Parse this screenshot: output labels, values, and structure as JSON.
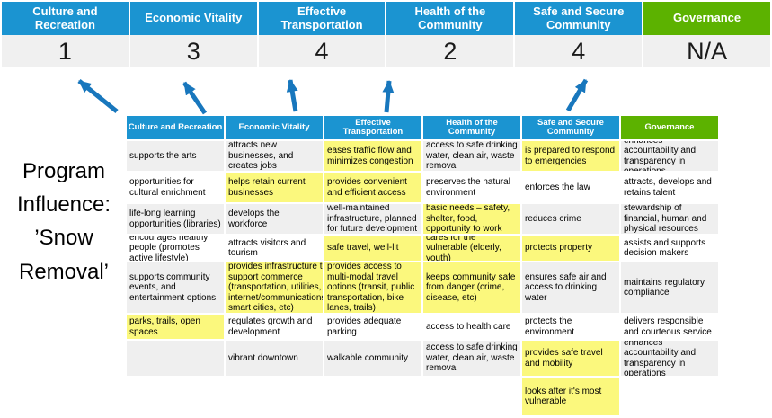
{
  "slide": {
    "program_label": "Program Influence: ’Snow Removal’"
  },
  "colors": {
    "priority_blue": "#1B94D1",
    "governance_green": "#5CB200",
    "highlight_yellow": "#FBF87D",
    "row_gray": "#EFEFEF",
    "score_row_bg": "#F0F0F0",
    "arrow_blue": "#1877BD"
  },
  "banner": {
    "columns": [
      {
        "label": "Culture and Recreation",
        "score": "1",
        "color": "#1B94D1"
      },
      {
        "label": "Economic Vitality",
        "score": "3",
        "color": "#1B94D1"
      },
      {
        "label": "Effective Transportation",
        "score": "4",
        "color": "#1B94D1"
      },
      {
        "label": "Health of the Community",
        "score": "2",
        "color": "#1B94D1"
      },
      {
        "label": "Safe and Secure Community",
        "score": "4",
        "color": "#1B94D1"
      },
      {
        "label": "Governance",
        "score": "N/A",
        "color": "#5CB200"
      }
    ]
  },
  "matrix": {
    "headers": [
      {
        "label": "Culture and Recreation",
        "color": "#1B94D1"
      },
      {
        "label": "Economic Vitality",
        "color": "#1B94D1"
      },
      {
        "label": "Effective Transportation",
        "color": "#1B94D1"
      },
      {
        "label": "Health of the Community",
        "color": "#1B94D1"
      },
      {
        "label": "Safe and Secure Community",
        "color": "#1B94D1"
      },
      {
        "label": "Governance",
        "color": "#5CB200"
      }
    ],
    "rows": [
      [
        {
          "text": "supports the arts",
          "highlight": false
        },
        {
          "text": "attracts new businesses, and creates jobs",
          "highlight": false
        },
        {
          "text": "eases traffic flow and minimizes congestion",
          "highlight": true
        },
        {
          "text": "access to safe drinking water, clean air, waste removal",
          "highlight": false
        },
        {
          "text": "is prepared to respond to emergencies",
          "highlight": true
        },
        {
          "text": "enhances accountability and transparency in operations",
          "highlight": false
        }
      ],
      [
        {
          "text": "opportunities for cultural enrichment",
          "highlight": false
        },
        {
          "text": "helps retain current businesses",
          "highlight": true
        },
        {
          "text": "provides convenient and efficient access",
          "highlight": true
        },
        {
          "text": "preserves the natural environment",
          "highlight": false
        },
        {
          "text": "enforces the law",
          "highlight": false
        },
        {
          "text": "attracts, develops and retains talent",
          "highlight": false
        }
      ],
      [
        {
          "text": "life-long learning opportunities (libraries)",
          "highlight": false
        },
        {
          "text": "develops the workforce",
          "highlight": false
        },
        {
          "text": "well-maintained infrastructure, planned for future development",
          "highlight": false
        },
        {
          "text": "basic needs – safety, shelter, food, opportunity to work",
          "highlight": true
        },
        {
          "text": "reduces crime",
          "highlight": false
        },
        {
          "text": "stewardship of financial, human and physical resources",
          "highlight": false
        }
      ],
      [
        {
          "text": "encourages healthy people (promotes active lifestyle)",
          "highlight": false
        },
        {
          "text": "attracts visitors and tourism",
          "highlight": false
        },
        {
          "text": "safe travel, well-lit",
          "highlight": true
        },
        {
          "text": "cares for the vulnerable (elderly, youth)",
          "highlight": true
        },
        {
          "text": "protects property",
          "highlight": true
        },
        {
          "text": "assists and supports decision makers",
          "highlight": false
        }
      ],
      [
        {
          "text": "supports community events, and entertainment options",
          "highlight": false
        },
        {
          "text": "provides infrastructure to support commerce (transportation, utilities, internet/communications, smart cities, etc)",
          "highlight": true
        },
        {
          "text": "provides access to multi-modal travel options (transit, public transportation, bike lanes, trails)",
          "highlight": true
        },
        {
          "text": "keeps community safe from danger (crime, disease, etc)",
          "highlight": true
        },
        {
          "text": "ensures safe air and access to drinking water",
          "highlight": false
        },
        {
          "text": "maintains regulatory compliance",
          "highlight": false
        }
      ],
      [
        {
          "text": "parks, trails, open spaces",
          "highlight": true
        },
        {
          "text": "regulates growth and development",
          "highlight": false
        },
        {
          "text": "provides adequate parking",
          "highlight": false
        },
        {
          "text": "access to health care",
          "highlight": false
        },
        {
          "text": "protects the environment",
          "highlight": false
        },
        {
          "text": "delivers responsible and courteous service",
          "highlight": false
        }
      ],
      [
        {
          "text": "",
          "highlight": false
        },
        {
          "text": "vibrant downtown",
          "highlight": false
        },
        {
          "text": "walkable community",
          "highlight": false
        },
        {
          "text": "access to safe drinking water, clean air, waste removal",
          "highlight": false
        },
        {
          "text": "provides safe travel and mobility",
          "highlight": true
        },
        {
          "text": "enhances accountability and transparency in operations",
          "highlight": false
        }
      ],
      [
        {
          "text": "",
          "highlight": false
        },
        {
          "text": "",
          "highlight": false
        },
        {
          "text": "",
          "highlight": false
        },
        {
          "text": "",
          "highlight": false
        },
        {
          "text": "looks after it's most vulnerable",
          "highlight": true
        },
        {
          "text": "",
          "highlight": false
        }
      ]
    ]
  }
}
